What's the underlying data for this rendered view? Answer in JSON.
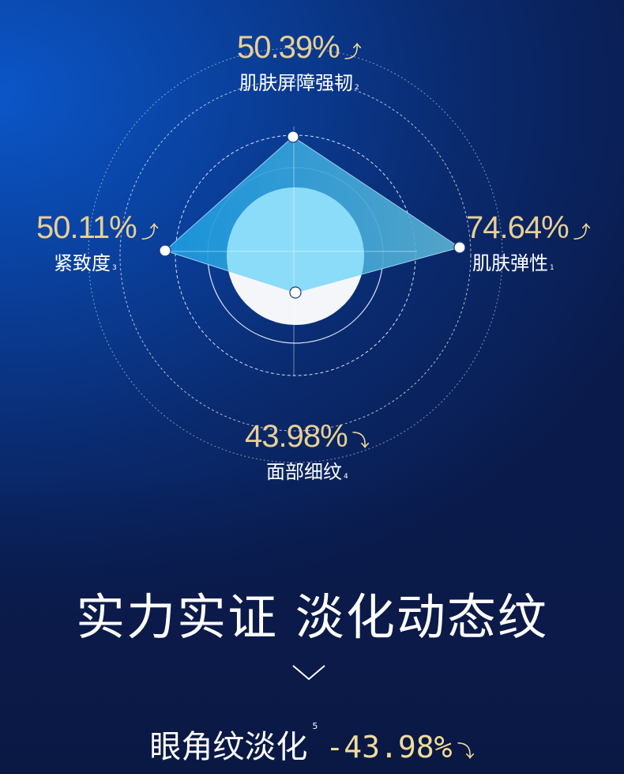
{
  "chart_data": {
    "type": "radar",
    "axes": [
      {
        "name": "肌肤弹性",
        "note": "1",
        "value": "74.64%",
        "trend": "up"
      },
      {
        "name": "肌肤屏障强韧",
        "note": "2",
        "value": "50.39%",
        "trend": "up"
      },
      {
        "name": "紧致度",
        "note": "3",
        "value": "50.11%",
        "trend": "up"
      },
      {
        "name": "面部细纹",
        "note": "4",
        "value": "43.98%",
        "trend": "down"
      }
    ],
    "colors": {
      "area": "#2aa6e0",
      "inner_circle": "#8adcf8",
      "value_text": "#e8cf95"
    }
  },
  "headline": "实力实证 淡化动态纹",
  "bottom": {
    "label": "眼角纹淡化",
    "note": "5",
    "value": "-43.98%",
    "trend": "down"
  }
}
